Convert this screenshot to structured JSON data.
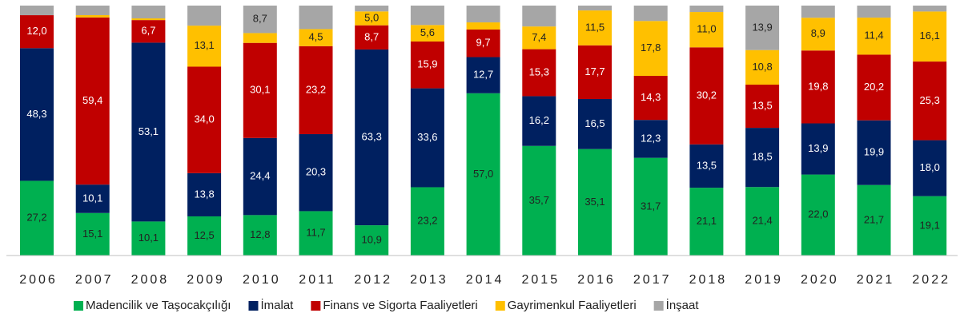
{
  "chart_data": {
    "type": "bar",
    "stacking": "percent",
    "categories": [
      "2006",
      "2007",
      "2008",
      "2009",
      "2010",
      "2011",
      "2012",
      "2013",
      "2014",
      "2015",
      "2016",
      "2017",
      "2018",
      "2019",
      "2020",
      "2021",
      "2022"
    ],
    "series": [
      {
        "name": "Madencilik ve Taşocakçılığı",
        "color": "#00b050",
        "values": [
          27.2,
          15.1,
          10.1,
          12.5,
          12.8,
          11.7,
          10.9,
          23.2,
          57.0,
          35.7,
          35.1,
          31.7,
          21.1,
          21.4,
          22.0,
          21.7,
          19.1
        ],
        "value_labels": [
          "27,2",
          "15,1",
          "10,1",
          "12,5",
          "12,8",
          "11,7",
          "10,9",
          "23,2",
          "57,0",
          "35,7",
          "35,1",
          "31,7",
          "21,1",
          "21,4",
          "22,0",
          "21,7",
          "19,1"
        ]
      },
      {
        "name": "İmalat",
        "color": "#002060",
        "values": [
          48.3,
          10.1,
          53.1,
          13.8,
          24.4,
          20.3,
          63.3,
          33.6,
          12.7,
          16.2,
          16.5,
          12.3,
          13.5,
          18.5,
          13.9,
          19.9,
          18.0
        ],
        "value_labels": [
          "48,3",
          "10,1",
          "53,1",
          "13,8",
          "24,4",
          "20,3",
          "63,3",
          "33,6",
          "12,7",
          "16,2",
          "16,5",
          "12,3",
          "13,5",
          "18,5",
          "13,9",
          "19,9",
          "18,0"
        ]
      },
      {
        "name": "Finans ve Sigorta Faaliyetleri",
        "color": "#c00000",
        "values": [
          12.0,
          59.4,
          6.7,
          34.0,
          30.1,
          23.2,
          8.7,
          15.9,
          9.7,
          15.3,
          17.7,
          14.3,
          30.2,
          13.5,
          19.8,
          20.2,
          25.3
        ],
        "value_labels": [
          "12,0",
          "59,4",
          "6,7",
          "34,0",
          "30,1",
          "23,2",
          "8,7",
          "15,9",
          "9,7",
          "15,3",
          "17,7",
          "14,3",
          "30,2",
          "13,5",
          "19,8",
          "20,2",
          "25,3"
        ]
      },
      {
        "name": "Gayrimenkul Faaliyetleri",
        "color": "#ffc000",
        "values": [
          0,
          0.8,
          0.5,
          13.1,
          3.1,
          4.5,
          5.0,
          5.6,
          2.5,
          7.4,
          11.5,
          17.8,
          11.0,
          10.8,
          8.9,
          11.4,
          16.1
        ],
        "value_labels": [
          null,
          null,
          null,
          "13,1",
          null,
          "4,5",
          "5,0",
          "5,6",
          null,
          "7,4",
          "11,5",
          "17,8",
          "11,0",
          "10,8",
          "8,9",
          "11,4",
          "16,1"
        ]
      },
      {
        "name": "İnşaat",
        "color": "#a6a6a6",
        "values": [
          3.5,
          3.4,
          3.8,
          6.4,
          8.7,
          6.2,
          2.1,
          6.6,
          5.9,
          6.8,
          1.6,
          5.0,
          2.0,
          13.9,
          3.3,
          3.7,
          1.9
        ],
        "value_labels": [
          null,
          null,
          null,
          null,
          "8,7",
          null,
          null,
          null,
          null,
          null,
          null,
          null,
          null,
          "13,9",
          null,
          null,
          null
        ]
      }
    ],
    "legend": "bottom"
  }
}
